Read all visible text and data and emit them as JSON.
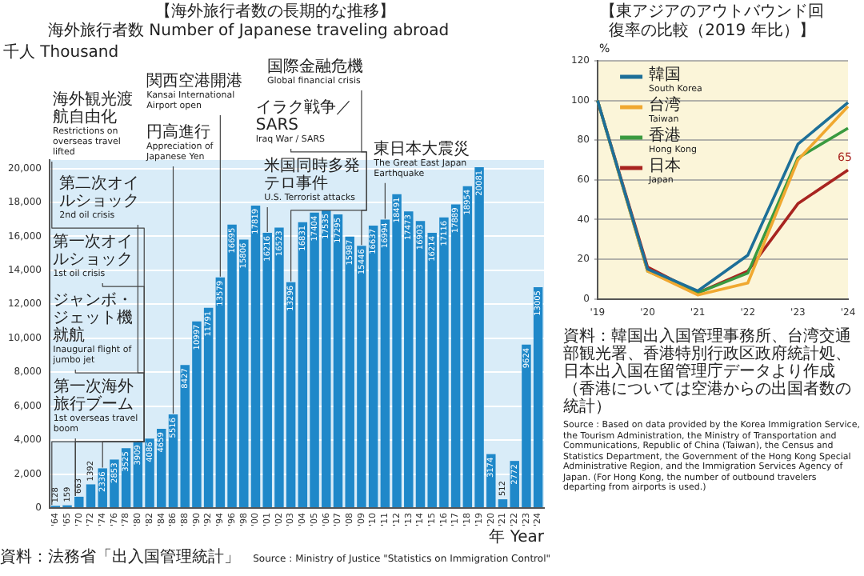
{
  "chart_data": [
    {
      "type": "bar",
      "title": "【海外旅行者数の長期的な推移】",
      "subtitle": "海外旅行者数 Number of Japanese traveling abroad",
      "ylabel": "千人 Thousand",
      "xlabel": "年 Year",
      "categories": [
        "'64",
        "'65",
        "'70",
        "'72",
        "'74",
        "'76",
        "'78",
        "'80",
        "'82",
        "'84",
        "'86",
        "'88",
        "'90",
        "'92",
        "'94",
        "'96",
        "'98",
        "'00",
        "'01",
        "'02",
        "'03",
        "'04",
        "'05",
        "'06",
        "'07",
        "'08",
        "'09",
        "'10",
        "'11",
        "'12",
        "'13",
        "'14",
        "'15",
        "'16",
        "'17",
        "'18",
        "'19",
        "'20",
        "'21",
        "'22",
        "'23",
        "'24"
      ],
      "values": [
        128,
        159,
        663,
        1392,
        2336,
        2853,
        3525,
        3909,
        4086,
        4659,
        5516,
        8427,
        10997,
        11791,
        13579,
        16695,
        15806,
        17819,
        16216,
        16523,
        13296,
        16831,
        17404,
        17535,
        17295,
        15987,
        15446,
        16637,
        16994,
        18491,
        17473,
        16903,
        16214,
        17116,
        17889,
        18954,
        20081,
        3174,
        512,
        2772,
        9624,
        13005
      ],
      "color": "#1f88c9",
      "ylim": [
        0,
        20500
      ],
      "yticks": [
        {
          "value": 0,
          "label": "0"
        },
        {
          "value": 2000,
          "label": "2,000"
        },
        {
          "value": 4000,
          "label": "4,000"
        },
        {
          "value": 6000,
          "label": "6,000"
        },
        {
          "value": 8000,
          "label": "8,000"
        },
        {
          "value": 10000,
          "label": "10,000"
        },
        {
          "value": 12000,
          "label": "12,000"
        },
        {
          "value": 14000,
          "label": "14,000"
        },
        {
          "value": 16000,
          "label": "16,000"
        },
        {
          "value": 18000,
          "label": "18,000"
        },
        {
          "value": 20000,
          "label": "20,000"
        }
      ],
      "grid": "y",
      "data_labels": true,
      "annotations": [
        {
          "text": "海外観光渡航自由化\nRestrictions on overseas travel lifted",
          "x": "'64",
          "y": 128
        },
        {
          "text": "第一次海外旅行ブーム\n1st overseas travel boom",
          "x": "'70",
          "y": 663
        },
        {
          "text": "ジャンボ・ジェット機就航\nInaugural flight of jumbo jet",
          "x": "'70",
          "y": 663
        },
        {
          "text": "第一次オイルショック\n1st oil crisis",
          "x": "'74",
          "y": 2336
        },
        {
          "text": "第二次オイルショック\n2nd oil crisis",
          "x": "'80",
          "y": 3909
        },
        {
          "text": "円高進行\nAppreciation of Japanese Yen",
          "x": "'86",
          "y": 5516
        },
        {
          "text": "関西空港開港\nKansai International Airport open",
          "x": "'94",
          "y": 13579
        },
        {
          "text": "米国同時多発テロ事件\nU.S. Terrorist attacks",
          "x": "'01",
          "y": 16216
        },
        {
          "text": "イラク戦争／SARS\nIraq War / SARS",
          "x": "'03",
          "y": 13296
        },
        {
          "text": "国際金融危機\nGlobal financial crisis",
          "x": "'09",
          "y": 15446
        },
        {
          "text": "東日本大震災\nThe Great East Japan Earthquake",
          "x": "'11",
          "y": 16994
        },
        "資料：法務省「出入国管理統計」",
        "Source : Ministry of Justice \"Statistics on Immigration Control\""
      ]
    },
    {
      "type": "line",
      "title": "【東アジアのアウトバウンド回復率の比較（2019 年比）】",
      "ylabel": "%",
      "categories": [
        "'19",
        "'20",
        "'21",
        "'22",
        "'23",
        "'24"
      ],
      "series": [
        {
          "name": "韓国\nSouth Korea",
          "color": "#1d6f98",
          "values": [
            100,
            15,
            4,
            22,
            78,
            99
          ]
        },
        {
          "name": "台湾\nTaiwan",
          "color": "#f0a830",
          "values": [
            100,
            14,
            2,
            8,
            70,
            97
          ]
        },
        {
          "name": "香港\nHong Kong",
          "color": "#3a9a40",
          "values": [
            100,
            14,
            3,
            13,
            71,
            86
          ]
        },
        {
          "name": "日本\nJapan",
          "color": "#a82420",
          "values": [
            100,
            16,
            3,
            14,
            48,
            65
          ],
          "value_labels": [
            null,
            null,
            null,
            null,
            null,
            "65"
          ]
        }
      ],
      "ylim": [
        0,
        120
      ],
      "yticks": [
        0,
        20,
        40,
        60,
        80,
        100,
        120
      ],
      "grid": "y",
      "legend": "top left",
      "annotations": [
        "資料：韓国出入国管理事務所、台湾交通部観光署、香港特別行政区政府統計処、日本出入国在留管理庁データより作成（香港については空港からの出国者数の統計）",
        "Source : Based on data provided by the Korea Immigration Service, the Tourism Administration, the Ministry of Transportation and Communications, Republic of China (Taiwan), the Census and Statistics Department, the Government of the Hong Kong Special Administrative Region, and the Immigration Services Agency of Japan. (For Hong Kong, the number of outbound travelers departing from airports is used.)"
      ]
    }
  ]
}
